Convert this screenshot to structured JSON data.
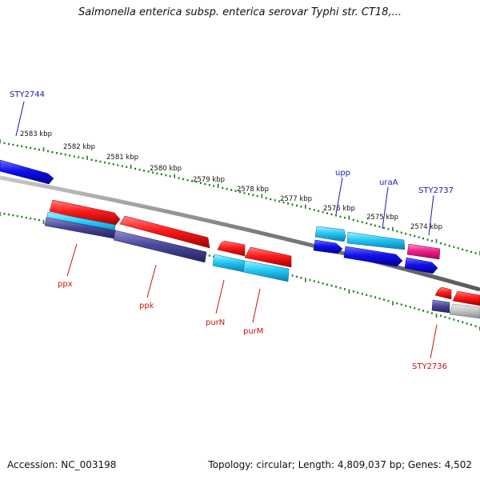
{
  "title": "Salmonella enterica subsp. enterica serovar Typhi str. CT18,...",
  "footer": {
    "accession": "Accession: NC_003198",
    "summary": "Topology: circular; Length: 4,809,037 bp; Genes: 4,502"
  },
  "colors": {
    "backbone": "#8a8a8a",
    "tick_track": "#1d7a1d",
    "label_forward": "#1a1aa8",
    "label_reverse": "#cc1111"
  },
  "scale_labels": [
    "2583 kbp",
    "2582 kbp",
    "2581 kbp",
    "2580 kbp",
    "2579 kbp",
    "2578 kbp",
    "2577 kbp",
    "2576 kbp",
    "2575 kbp",
    "2574 kbp"
  ],
  "gene_labels": {
    "forward": [
      "STY2744",
      "upp",
      "uraA",
      "STY2737"
    ],
    "reverse": [
      "ppx",
      "ppk",
      "purN",
      "purM",
      "STY2736"
    ]
  }
}
